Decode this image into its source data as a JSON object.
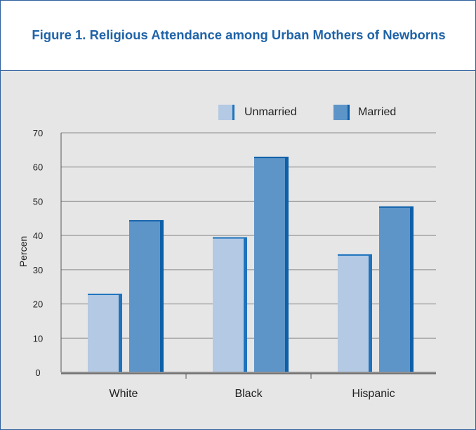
{
  "figure": {
    "title": "Figure 1. Religious Attendance among Urban Mothers of Newborns"
  },
  "colors": {
    "unmarried_face": "#b3c9e4",
    "unmarried_side": "#1f73bd",
    "married_face": "#5e95c9",
    "married_side": "#0d5fa8",
    "axis": "#555555",
    "grid": "#8a8a8a",
    "title": "#1f63a8"
  },
  "chart_data": {
    "type": "bar",
    "title": "Figure 1. Religious Attendance among Urban Mothers of Newborns",
    "xlabel": "",
    "ylabel": "Percen",
    "categories": [
      "White",
      "Black",
      "Hispanic"
    ],
    "series": [
      {
        "name": "Unmarried",
        "values": [
          23,
          39.5,
          34.5
        ]
      },
      {
        "name": "Married",
        "values": [
          44.5,
          63,
          48.5
        ]
      }
    ],
    "ylim": [
      0,
      70
    ],
    "yticks": [
      "0",
      "10",
      "20",
      "30",
      "40",
      "50",
      "60",
      "70"
    ],
    "grid": true,
    "legend_position": "top"
  }
}
